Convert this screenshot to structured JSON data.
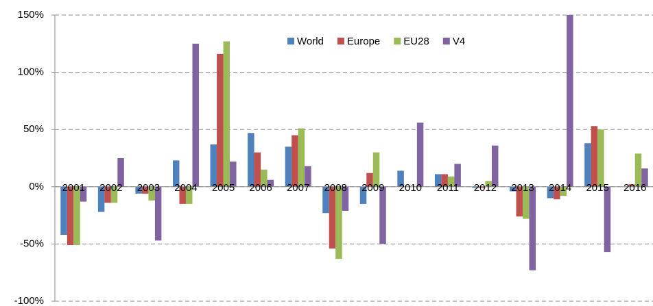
{
  "chart_data": {
    "type": "bar",
    "categories": [
      "2001",
      "2002",
      "2003",
      "2004",
      "2005",
      "2006",
      "2007",
      "2008",
      "2009",
      "2010",
      "2011",
      "2012",
      "2013",
      "2014",
      "2015",
      "2016"
    ],
    "series": [
      {
        "name": "World",
        "color": "#4f81bd",
        "values": [
          -42,
          -22,
          -6,
          23,
          37,
          47,
          35,
          -23,
          -15,
          14,
          11,
          -1,
          -4,
          -10,
          38,
          0
        ]
      },
      {
        "name": "Europe",
        "color": "#c0504d",
        "values": [
          -51,
          -14,
          -6,
          -15,
          116,
          30,
          45,
          -54,
          12,
          0,
          11,
          -1,
          -26,
          -11,
          53,
          2
        ]
      },
      {
        "name": "EU28",
        "color": "#9bbb59",
        "values": [
          -51,
          -14,
          -12,
          -15,
          127,
          15,
          51,
          -63,
          30,
          0,
          9,
          5,
          -28,
          -8,
          50,
          29
        ]
      },
      {
        "name": "V4",
        "color": "#8064a2",
        "values": [
          -13,
          25,
          -47,
          125,
          22,
          6,
          18,
          -21,
          -50,
          56,
          20,
          36,
          -73,
          150,
          -57,
          16
        ]
      }
    ],
    "ylim": [
      -100,
      150
    ],
    "yticks": [
      {
        "value": -100,
        "label": "-100%"
      },
      {
        "value": -50,
        "label": "-50%"
      },
      {
        "value": 0,
        "label": "0%"
      },
      {
        "value": 50,
        "label": "50%"
      },
      {
        "value": 100,
        "label": "100%"
      },
      {
        "value": 150,
        "label": "150%"
      }
    ],
    "grid": true
  }
}
